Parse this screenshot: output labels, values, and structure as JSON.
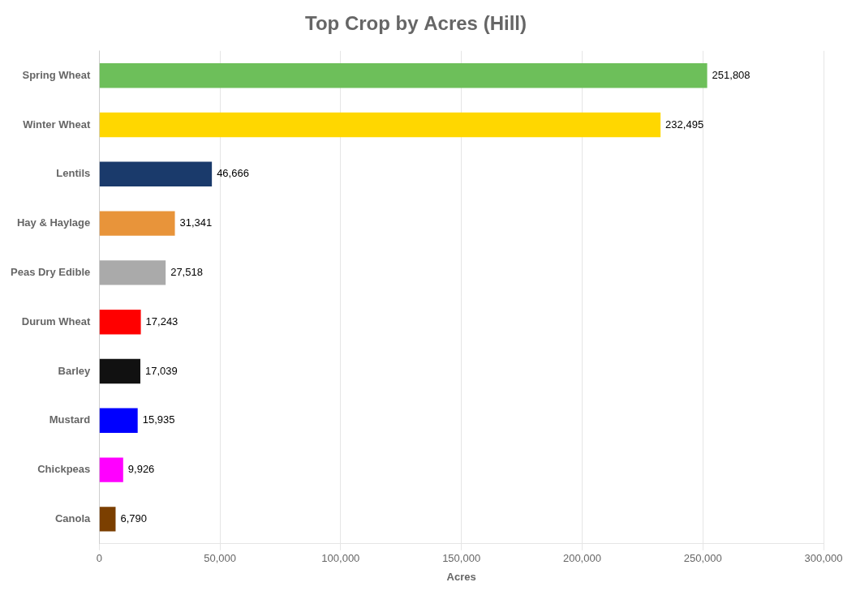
{
  "chart_data": {
    "type": "bar",
    "orientation": "horizontal",
    "title": "Top Crop by Acres (Hill)",
    "xlabel": "Acres",
    "categories": [
      "Canola",
      "Chickpeas",
      "Mustard",
      "Barley",
      "Durum Wheat",
      "Peas Dry Edible",
      "Hay & Haylage",
      "Lentils",
      "Winter Wheat",
      "Spring Wheat"
    ],
    "values": [
      6790,
      9926,
      15935,
      17039,
      17243,
      27518,
      31341,
      46666,
      232495,
      251808
    ],
    "value_labels": [
      "6,790",
      "9,926",
      "15,935",
      "17,039",
      "17,243",
      "27,518",
      "31,341",
      "46,666",
      "232,495",
      "251,808"
    ],
    "colors": [
      "#7B3F00",
      "#FF00FF",
      "#0000FF",
      "#111111",
      "#FF0000",
      "#AAAAAA",
      "#E8943A",
      "#1A3A6B",
      "#FFD700",
      "#6DBF5A"
    ],
    "xlim": [
      0,
      300000
    ],
    "xticks": [
      0,
      {
        "value": 50000,
        "label": "50,000"
      },
      {
        "value": 100000,
        "label": "100,000"
      },
      {
        "value": 150000,
        "label": "150,000"
      },
      {
        "value": 200000,
        "label": "200,000"
      },
      {
        "value": 250000,
        "label": "250,000"
      },
      {
        "value": 300000,
        "label": "300,000"
      }
    ],
    "grid": true,
    "data_labels": true
  }
}
